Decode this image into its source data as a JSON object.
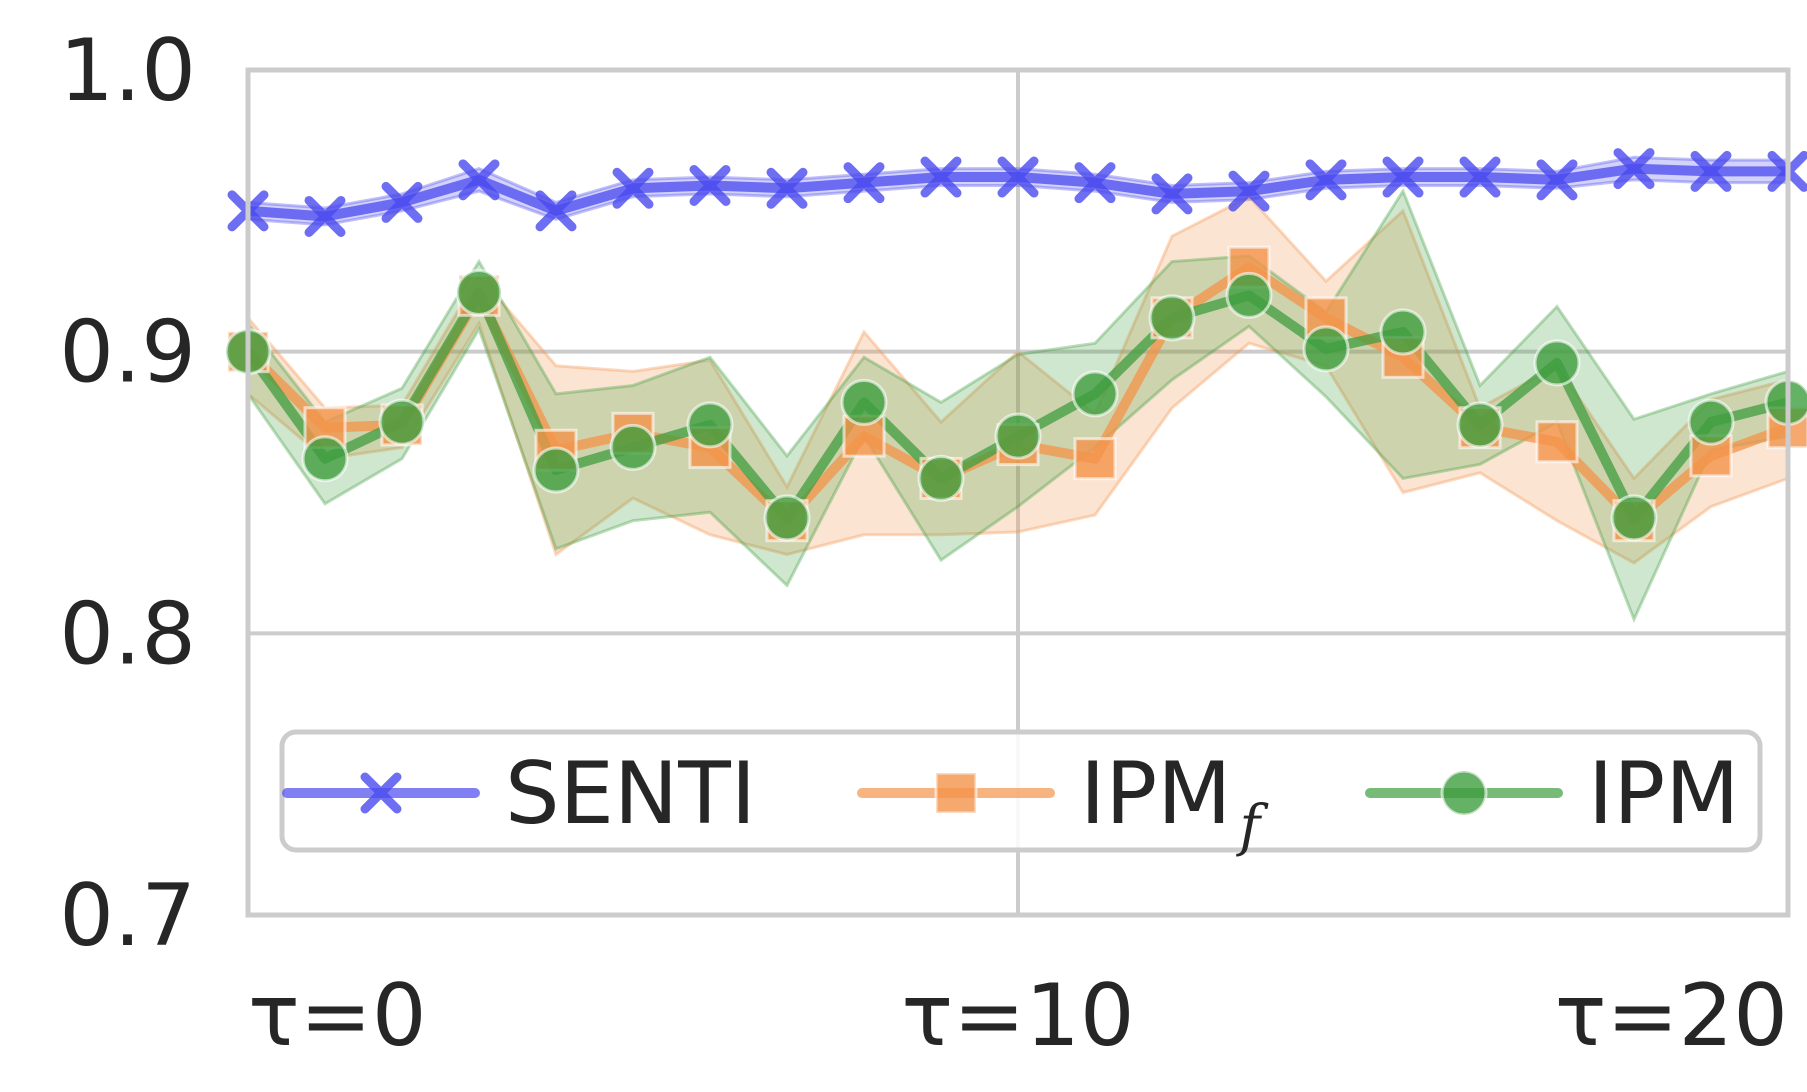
{
  "chart_data": {
    "type": "line",
    "x": [
      0,
      1,
      2,
      3,
      4,
      5,
      6,
      7,
      8,
      9,
      10,
      11,
      12,
      13,
      14,
      15,
      16,
      17,
      18,
      19,
      20
    ],
    "xticks": [
      0,
      10,
      20
    ],
    "xtick_labels": [
      "τ=0",
      "τ=10",
      "τ=20"
    ],
    "xlim": [
      0,
      20
    ],
    "ylim": [
      0.7,
      1.0
    ],
    "yticks": [
      0.7,
      0.8,
      0.9,
      1.0
    ],
    "ytick_labels": [
      "0.7",
      "0.8",
      "0.9",
      "1.0"
    ],
    "grid": true,
    "legend_position": "lower center",
    "series": [
      {
        "name": "SENTI",
        "color": "#4a4aef",
        "marker": "x",
        "values": [
          0.95,
          0.948,
          0.953,
          0.961,
          0.95,
          0.958,
          0.959,
          0.958,
          0.96,
          0.962,
          0.962,
          0.96,
          0.956,
          0.957,
          0.961,
          0.962,
          0.962,
          0.961,
          0.965,
          0.964,
          0.964
        ],
        "lower": [
          0.947,
          0.945,
          0.95,
          0.957,
          0.947,
          0.955,
          0.956,
          0.955,
          0.957,
          0.959,
          0.959,
          0.957,
          0.953,
          0.954,
          0.958,
          0.959,
          0.959,
          0.958,
          0.961,
          0.96,
          0.96
        ],
        "upper": [
          0.953,
          0.951,
          0.956,
          0.965,
          0.953,
          0.961,
          0.962,
          0.961,
          0.963,
          0.965,
          0.965,
          0.963,
          0.959,
          0.96,
          0.964,
          0.965,
          0.965,
          0.964,
          0.969,
          0.968,
          0.968
        ]
      },
      {
        "name": "IPM",
        "name_subscript": "f",
        "color": "#f4934a",
        "marker": "s",
        "values": [
          0.9,
          0.873,
          0.874,
          0.92,
          0.865,
          0.871,
          0.866,
          0.84,
          0.87,
          0.855,
          0.867,
          0.862,
          0.912,
          0.93,
          0.912,
          0.898,
          0.873,
          0.868,
          0.84,
          0.863,
          0.873
        ],
        "lower": [
          0.885,
          0.862,
          0.866,
          0.91,
          0.828,
          0.848,
          0.835,
          0.828,
          0.835,
          0.835,
          0.836,
          0.842,
          0.88,
          0.903,
          0.895,
          0.85,
          0.857,
          0.84,
          0.825,
          0.845,
          0.855
        ],
        "upper": [
          0.912,
          0.88,
          0.881,
          0.927,
          0.895,
          0.893,
          0.897,
          0.852,
          0.907,
          0.875,
          0.9,
          0.878,
          0.941,
          0.955,
          0.925,
          0.95,
          0.88,
          0.895,
          0.855,
          0.883,
          0.89
        ]
      },
      {
        "name": "IPM",
        "color": "#3f9e3f",
        "marker": "o",
        "values": [
          0.9,
          0.862,
          0.875,
          0.921,
          0.858,
          0.866,
          0.874,
          0.841,
          0.882,
          0.855,
          0.87,
          0.885,
          0.912,
          0.92,
          0.901,
          0.907,
          0.874,
          0.896,
          0.841,
          0.875,
          0.882
        ],
        "lower": [
          0.885,
          0.846,
          0.862,
          0.908,
          0.83,
          0.84,
          0.843,
          0.817,
          0.87,
          0.826,
          0.845,
          0.866,
          0.89,
          0.909,
          0.884,
          0.855,
          0.86,
          0.875,
          0.805,
          0.865,
          0.87
        ],
        "upper": [
          0.91,
          0.875,
          0.887,
          0.932,
          0.885,
          0.888,
          0.898,
          0.863,
          0.898,
          0.882,
          0.899,
          0.903,
          0.932,
          0.934,
          0.914,
          0.957,
          0.888,
          0.916,
          0.876,
          0.885,
          0.893
        ]
      }
    ]
  }
}
